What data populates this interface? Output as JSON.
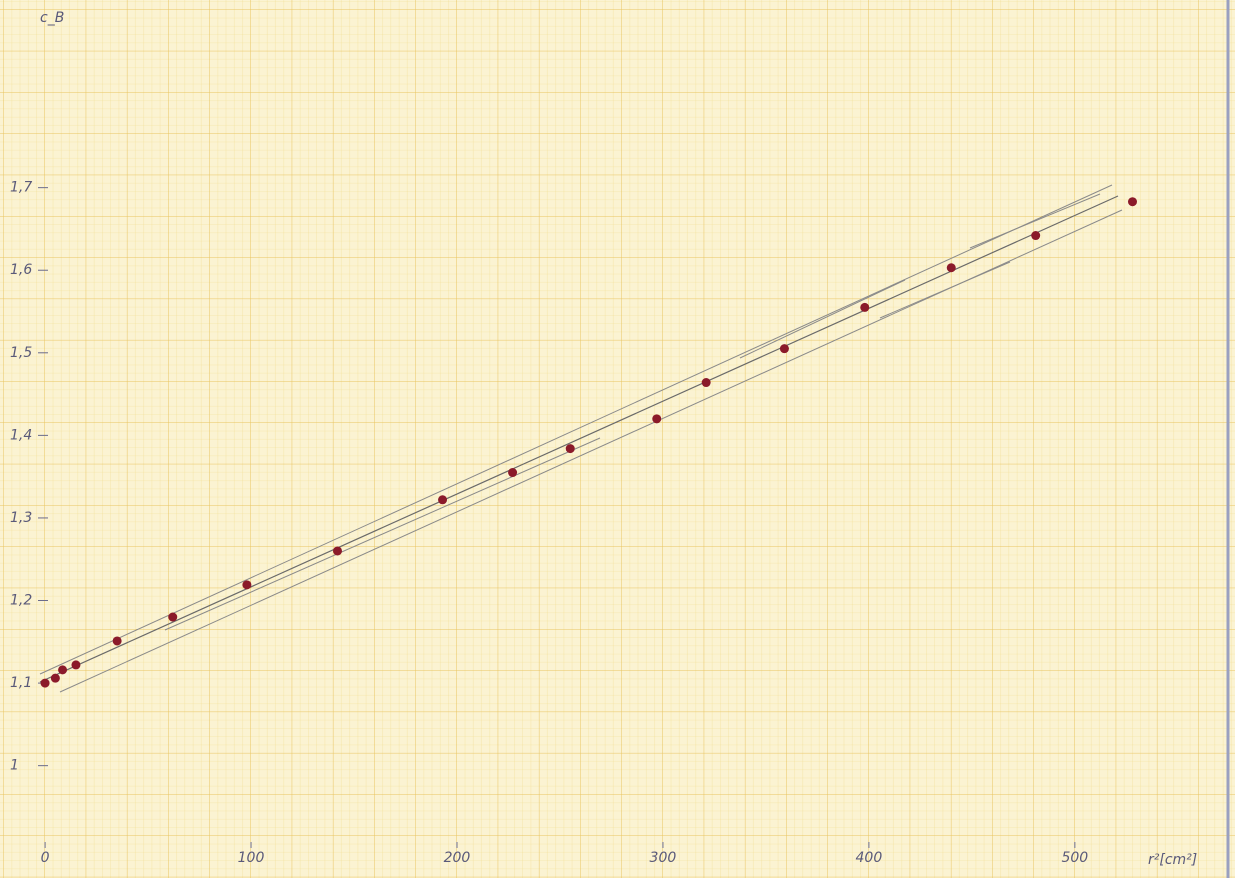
{
  "chart_data": {
    "type": "scatter",
    "y_label": "c_B",
    "x_label": "r²[cm²]",
    "x": [
      0,
      5,
      8.5,
      15,
      35,
      62,
      98,
      142,
      193,
      227,
      255,
      297,
      321,
      359,
      398,
      440,
      481,
      528
    ],
    "values": [
      1.1,
      1.106,
      1.116,
      1.122,
      1.151,
      1.18,
      1.219,
      1.26,
      1.322,
      1.355,
      1.384,
      1.42,
      1.464,
      1.505,
      1.555,
      1.603,
      1.642,
      1.683
    ],
    "color": "#8b1a2a",
    "xlim": [
      -1,
      570
    ],
    "ylim": [
      0.87,
      1.92
    ],
    "xticks": [
      0,
      100,
      200,
      300,
      400,
      500
    ],
    "yticks": [
      {
        "value": 1,
        "label": "1"
      },
      {
        "value": 1.1,
        "label": "1,1"
      },
      {
        "value": 1.2,
        "label": "1,2"
      },
      {
        "value": 1.3,
        "label": "1,3"
      },
      {
        "value": 1.4,
        "label": "1,4"
      },
      {
        "value": 1.5,
        "label": "1,5"
      },
      {
        "value": 1.6,
        "label": "1,6"
      },
      {
        "value": 1.7,
        "label": "1,7"
      }
    ]
  }
}
